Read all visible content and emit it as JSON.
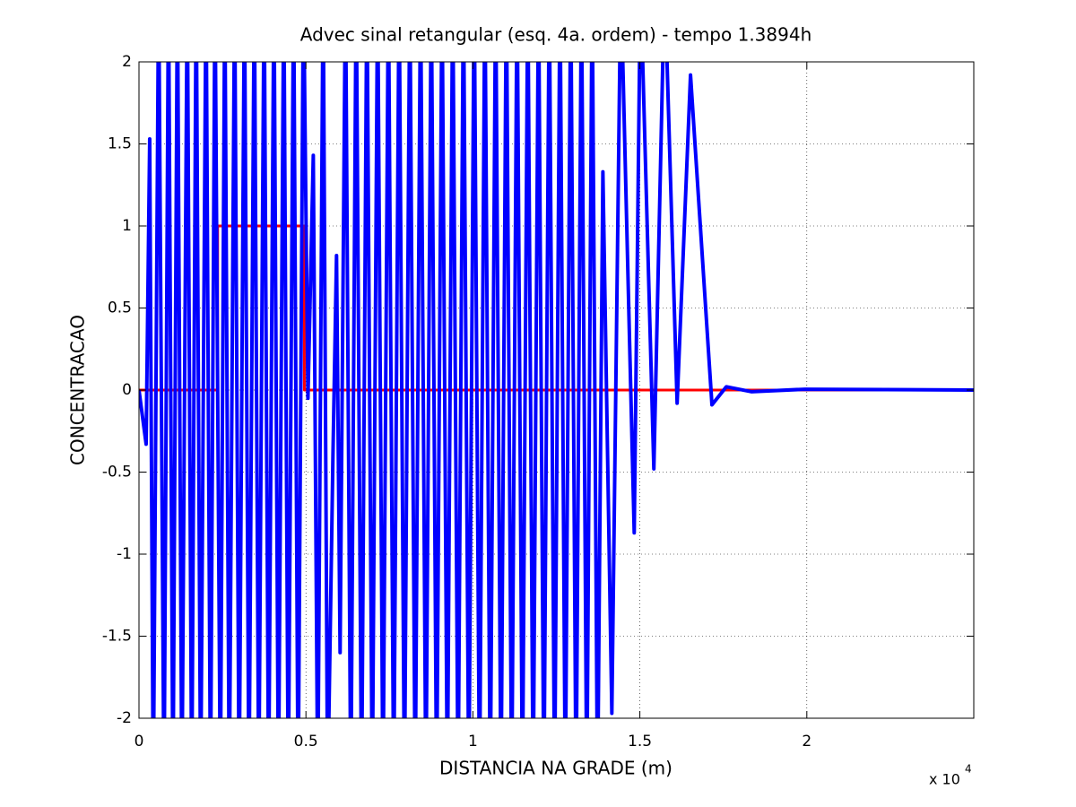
{
  "chart_data": {
    "type": "line",
    "title": "Advec sinal retangular (esq. 4a. ordem) - tempo 1.3894h",
    "xlabel": "DISTANCIA NA GRADE (m)",
    "ylabel": "CONCENTRACAO",
    "x_multiplier": "x 10",
    "x_multiplier_exponent": "4",
    "xlim": [
      0,
      25000
    ],
    "ylim": [
      -2,
      2
    ],
    "xticks": [
      0,
      {
        "value": 5000,
        "label": "0.5"
      },
      {
        "value": 10000,
        "label": "1"
      },
      {
        "value": 15000,
        "label": "1.5"
      },
      {
        "value": 20000,
        "label": "2"
      }
    ],
    "yticks": [
      -2,
      -1.5,
      -1,
      -0.5,
      0,
      0.5,
      1,
      1.5,
      2
    ],
    "grid": true,
    "series": [
      {
        "color": "#ff0000",
        "x": [
          0,
          2356,
          2356,
          4953,
          4953,
          25000
        ],
        "values": [
          0,
          0,
          1,
          1,
          0,
          0
        ]
      },
      {
        "color": "#0000ff",
        "x": [
          0,
          214,
          321,
          428,
          589,
          750,
          884,
          1018,
          1151,
          1285,
          1446,
          1580,
          1713,
          1847,
          2008,
          2142,
          2276,
          2437,
          2570,
          2704,
          2865,
          2999,
          3159,
          3293,
          3454,
          3587,
          3748,
          3882,
          4042,
          4176,
          4337,
          4471,
          4631,
          4765,
          4926,
          5060,
          5220,
          5354,
          5515,
          5649,
          5809,
          5916,
          6023,
          6184,
          6344,
          6505,
          6666,
          6826,
          6987,
          7147,
          7308,
          7469,
          7629,
          7790,
          7950,
          8111,
          8272,
          8432,
          8593,
          8753,
          8914,
          9075,
          9235,
          9396,
          9556,
          9717,
          9878,
          10038,
          10199,
          10359,
          10520,
          10681,
          10841,
          11002,
          11162,
          11323,
          11484,
          11644,
          11805,
          11965,
          12126,
          12287,
          12447,
          12608,
          12768,
          12929,
          13090,
          13250,
          13411,
          13571,
          13732,
          13893,
          14161,
          14429,
          14831,
          15018,
          15419,
          15741,
          16116,
          16517,
          17159,
          17588,
          18337,
          19943,
          25000
        ],
        "values": [
          0,
          -0.33,
          1.53,
          -2.5,
          2.5,
          -2.5,
          2.5,
          -2.5,
          2.5,
          -2.5,
          2.5,
          -2.5,
          2.5,
          -2.5,
          2.5,
          -2.5,
          2.5,
          -2.5,
          2.5,
          -2.5,
          2.5,
          -2.5,
          2.5,
          -2.5,
          2.5,
          -2.5,
          2.5,
          -2.5,
          2.5,
          -2.5,
          2.5,
          -2.5,
          2.5,
          -2.5,
          2.5,
          -0.05,
          1.43,
          -2.5,
          2.5,
          -2.5,
          -0.4,
          0.82,
          -1.6,
          2.5,
          -2.5,
          2.5,
          -2.5,
          2.5,
          -2.5,
          2.5,
          -2.5,
          2.5,
          -2.5,
          2.5,
          -2.5,
          2.5,
          -2.5,
          2.5,
          -2.5,
          2.5,
          -2.5,
          2.5,
          -2.5,
          2.5,
          -2.5,
          2.5,
          -2.5,
          2.5,
          -2.5,
          2.5,
          -2.5,
          2.5,
          -2.5,
          2.5,
          -2.5,
          2.5,
          -2.5,
          2.5,
          -2.5,
          2.5,
          -2.5,
          2.5,
          -2.5,
          2.5,
          -2.5,
          2.5,
          -2.5,
          2.5,
          -2.5,
          2.5,
          -2.5,
          1.33,
          -1.97,
          2.5,
          -0.87,
          2.5,
          -0.48,
          2.5,
          -0.08,
          1.92,
          -0.09,
          0.02,
          -0.01,
          0.005,
          0
        ]
      }
    ]
  }
}
